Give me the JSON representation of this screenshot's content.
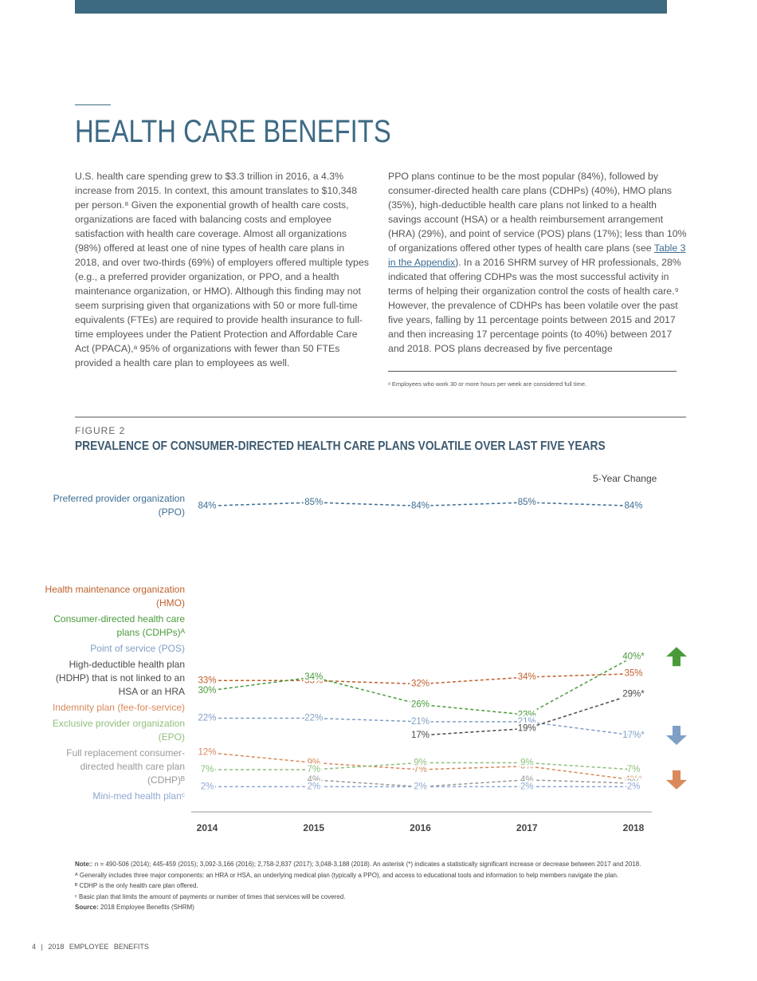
{
  "header": {
    "title": "HEALTH CARE BENEFITS"
  },
  "body": {
    "left_paragraph": "U.S. health care spending grew to $3.3 trillion in 2016, a 4.3% increase from 2015. In context, this amount translates to $10,348 per person.⁸ Given the exponential growth of health care costs, organizations are faced with balancing costs and employee satisfaction with health care coverage. Almost all organizations (98%) offered at least one of nine types of health care plans in 2018, and over two-thirds (69%) of employers offered multiple types (e.g., a preferred provider organization, or PPO, and a health maintenance organization, or HMO). Although this finding may not seem surprising given that organizations with 50 or more full-time equivalents (FTEs) are required to provide health insurance to full-time employees under the Patient Protection and Affordable Care Act (PPACA),ᵃ 95% of organizations with fewer than 50 FTEs provided a health care plan to employees as well.",
    "right_before": "PPO plans continue to be the most popular (84%), followed by consumer-directed health care plans (CDHPs) (40%), HMO plans (35%), high-deductible health care plans not linked to a health savings account (HSA) or a health reimbursement arrangement (HRA) (29%), and point of service (POS) plans (17%); less than 10% of organizations offered other types of health care plans (see ",
    "right_link": "Table 3 in the Appendix",
    "right_after": "). In a 2016 SHRM survey of HR professionals, 28% indicated that offering CDHPs was the most successful activity in terms of helping their organization control the costs of health care.⁹ However, the prevalence of CDHPs has been volatile over the past five years, falling by 11 percentage points between 2015 and 2017 and then increasing 17 percentage points (to 40%) between 2017 and 2018. POS plans decreased by five percentage",
    "footnote": "ᵃ Employees who work 30 or more hours per week are considered full time."
  },
  "figure": {
    "label": "FIGURE 2",
    "title": "PREVALENCE OF CONSUMER-DIRECTED HEALTH CARE PLANS VOLATILE OVER LAST FIVE YEARS",
    "change_heading": "5-Year Change"
  },
  "chart_data": {
    "type": "line",
    "categories": [
      "2014",
      "2015",
      "2016",
      "2017",
      "2018"
    ],
    "series": [
      {
        "name": "Preferred provider organization (PPO)",
        "color": "#3d6e94",
        "values": [
          84,
          85,
          84,
          85,
          84
        ],
        "value_labels": [
          "84%",
          "85%",
          "84%",
          "85%",
          "84%"
        ]
      },
      {
        "name": "Health maintenance organization (HMO)",
        "color": "#c0602b",
        "values": [
          33,
          33,
          32,
          34,
          35
        ],
        "value_labels": [
          "33%",
          "33%",
          "32%",
          "34%",
          "35%"
        ]
      },
      {
        "name": "Consumer-directed health care plans (CDHPs)ᴬ",
        "color": "#4a9a3b",
        "values": [
          30,
          34,
          26,
          23,
          40
        ],
        "value_labels": [
          "30%",
          "34%",
          "26%",
          "23%",
          "40%*"
        ],
        "arrow": "up"
      },
      {
        "name": "Point of service (POS)",
        "color": "#7f9fc6",
        "values": [
          22,
          22,
          21,
          21,
          17
        ],
        "value_labels": [
          "22%",
          "22%",
          "21%",
          "21%",
          "17%*"
        ],
        "arrow": "down"
      },
      {
        "name": "High-deductible health plan (HDHP) that is not linked to an HSA or an HRA",
        "color": "#4a4a4a",
        "values": [
          null,
          null,
          17,
          19,
          29
        ],
        "value_labels": [
          null,
          null,
          "17%",
          "19%",
          "29%*"
        ]
      },
      {
        "name": "Indemnity plan (fee-for-service)",
        "color": "#d9895a",
        "values": [
          12,
          9,
          7,
          8,
          4
        ],
        "value_labels": [
          "12%",
          "9%",
          "7%",
          "8%",
          "4%*"
        ],
        "arrow": "down"
      },
      {
        "name": "Exclusive provider organization (EPO)",
        "color": "#8fbf7c",
        "values": [
          7,
          7,
          9,
          9,
          7
        ],
        "value_labels": [
          "7%",
          "7%",
          "9%",
          "9%",
          "7%"
        ]
      },
      {
        "name": "Full replacement consumer-directed health care plan (CDHP)ᴮ",
        "color": "#999999",
        "values": [
          null,
          4,
          2,
          4,
          3
        ],
        "value_labels": [
          null,
          "4%",
          "2%",
          "4%",
          "3%"
        ]
      },
      {
        "name": "Mini-med health planᶜ",
        "color": "#8fa8d0",
        "values": [
          2,
          2,
          2,
          2,
          2
        ],
        "value_labels": [
          "2%",
          "2%",
          "2%",
          "2%",
          "2%"
        ]
      }
    ]
  },
  "notes": {
    "note_label": "Note:",
    "note_text": ": n = 490-506 (2014); 445-459 (2015); 3,092-3,166 (2016); 2,758-2,837 (2017); 3,048-3,188 (2018). An asterisk (*) indicates a statistically significant increase or decrease between 2017 and 2018.",
    "footnotes": [
      "ᴬ Generally includes three major components: an HRA or HSA, an underlying medical plan (typically a PPO), and access to educational tools and information to help members navigate the plan.",
      "ᴮ CDHP is the only health care plan offered.",
      "ᶜ Basic plan that limits the amount of payments or number of times that services will be covered."
    ],
    "source_label": "Source:",
    "source_text": "2018 Employee Benefits (SHRM)"
  },
  "footer": {
    "page": "4",
    "separator": "|",
    "title": "2018 EMPLOYEE BENEFITS"
  }
}
